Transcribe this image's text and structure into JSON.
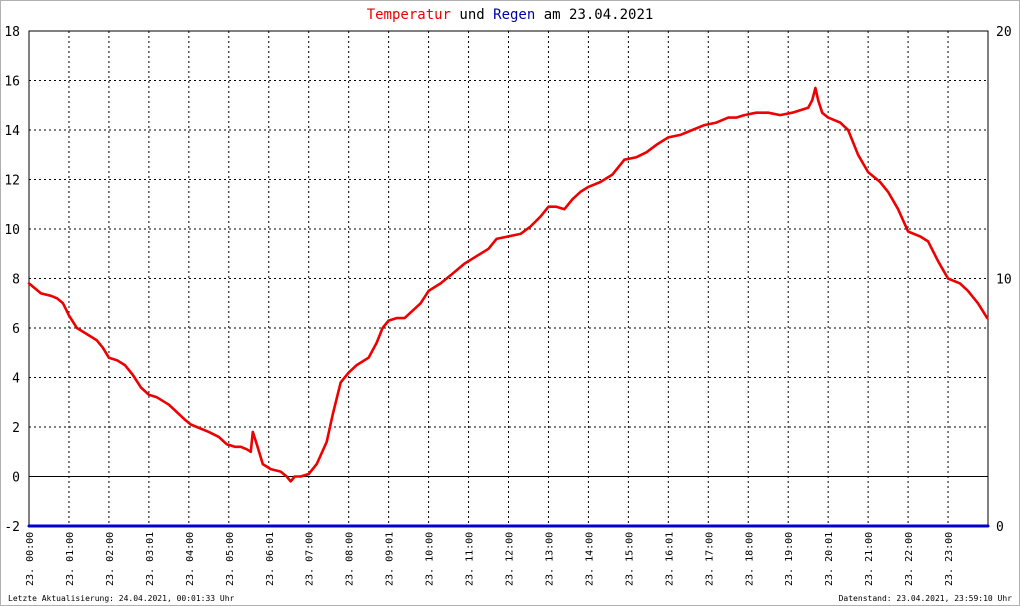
{
  "chart_data": {
    "type": "line",
    "title_parts": {
      "temp_word": "Temperatur",
      "und": " und ",
      "rain_word": "Regen",
      "rest": " am 23.04.2021"
    },
    "left_axis": {
      "ylim": [
        -2,
        18
      ],
      "ticks": [
        "-2",
        "0",
        "2",
        "4",
        "6",
        "8",
        "10",
        "12",
        "14",
        "16",
        "18"
      ]
    },
    "right_axis": {
      "ylim": [
        0,
        20
      ],
      "ticks": [
        "0",
        "10",
        "20"
      ]
    },
    "x_ticks": [
      "23. 00:00",
      "23. 01:00",
      "23. 02:00",
      "23. 03:01",
      "23. 04:00",
      "23. 05:00",
      "23. 06:01",
      "23. 07:00",
      "23. 08:00",
      "23. 09:01",
      "23. 10:00",
      "23. 11:00",
      "23. 12:00",
      "23. 13:00",
      "23. 14:00",
      "23. 15:00",
      "23. 16:01",
      "23. 17:00",
      "23. 18:00",
      "23. 19:00",
      "23. 20:01",
      "23. 21:00",
      "23. 22:00",
      "23. 23:00"
    ],
    "grid": true,
    "series": [
      {
        "key": "temperature",
        "color": "#ee0000",
        "axis": "left",
        "unit": "hour",
        "x": [
          0,
          0.15,
          0.3,
          0.55,
          0.7,
          0.85,
          1.0,
          1.2,
          1.5,
          1.7,
          1.85,
          2.0,
          2.2,
          2.4,
          2.6,
          2.8,
          3.0,
          3.2,
          3.5,
          3.7,
          3.9,
          4.05,
          4.2,
          4.5,
          4.75,
          4.95,
          5.15,
          5.3,
          5.45,
          5.55,
          5.6,
          5.7,
          5.85,
          6.05,
          6.3,
          6.45,
          6.55,
          6.65,
          6.8,
          7.0,
          7.2,
          7.45,
          7.6,
          7.8,
          8.0,
          8.2,
          8.5,
          8.7,
          8.85,
          9.0,
          9.2,
          9.4,
          9.6,
          9.8,
          10.0,
          10.3,
          10.6,
          10.9,
          11.2,
          11.5,
          11.7,
          12.0,
          12.3,
          12.55,
          12.8,
          13.0,
          13.2,
          13.4,
          13.6,
          13.8,
          14.0,
          14.3,
          14.6,
          14.9,
          15.2,
          15.45,
          15.7,
          16.0,
          16.3,
          16.6,
          16.9,
          17.2,
          17.5,
          17.7,
          17.9,
          18.2,
          18.5,
          18.8,
          19.1,
          19.3,
          19.5,
          19.6,
          19.68,
          19.75,
          19.85,
          20.0,
          20.3,
          20.5,
          20.75,
          21.0,
          21.3,
          21.5,
          21.75,
          22.0,
          22.3,
          22.5,
          22.75,
          23.0,
          23.3,
          23.5,
          23.75,
          23.98
        ],
        "values": [
          7.8,
          7.6,
          7.4,
          7.3,
          7.2,
          7.0,
          6.5,
          6.0,
          5.7,
          5.5,
          5.2,
          4.8,
          4.7,
          4.5,
          4.1,
          3.6,
          3.3,
          3.2,
          2.9,
          2.6,
          2.3,
          2.1,
          2.0,
          1.8,
          1.6,
          1.3,
          1.2,
          1.2,
          1.1,
          1.0,
          1.8,
          1.3,
          0.5,
          0.3,
          0.2,
          0.0,
          -0.2,
          0.0,
          0.0,
          0.1,
          0.5,
          1.4,
          2.5,
          3.8,
          4.2,
          4.5,
          4.8,
          5.4,
          6.0,
          6.3,
          6.4,
          6.4,
          6.7,
          7.0,
          7.5,
          7.8,
          8.2,
          8.6,
          8.9,
          9.2,
          9.6,
          9.7,
          9.8,
          10.1,
          10.5,
          10.9,
          10.9,
          10.8,
          11.2,
          11.5,
          11.7,
          11.9,
          12.2,
          12.8,
          12.9,
          13.1,
          13.4,
          13.7,
          13.8,
          14.0,
          14.2,
          14.3,
          14.5,
          14.5,
          14.6,
          14.7,
          14.7,
          14.6,
          14.7,
          14.8,
          14.9,
          15.2,
          15.7,
          15.2,
          14.7,
          14.5,
          14.3,
          14.0,
          13.0,
          12.3,
          11.9,
          11.5,
          10.8,
          9.9,
          9.7,
          9.5,
          8.7,
          8.0,
          7.8,
          7.5,
          7.0,
          6.4
        ]
      },
      {
        "key": "rain",
        "color": "#0000cc",
        "axis": "right",
        "unit": "hour",
        "x": [
          0,
          24
        ],
        "values": [
          0,
          0
        ]
      }
    ]
  },
  "footer": {
    "left": "Letzte Aktualisierung: 24.04.2021, 00:01:33 Uhr",
    "right": "Datenstand: 23.04.2021, 23:59:10 Uhr"
  }
}
